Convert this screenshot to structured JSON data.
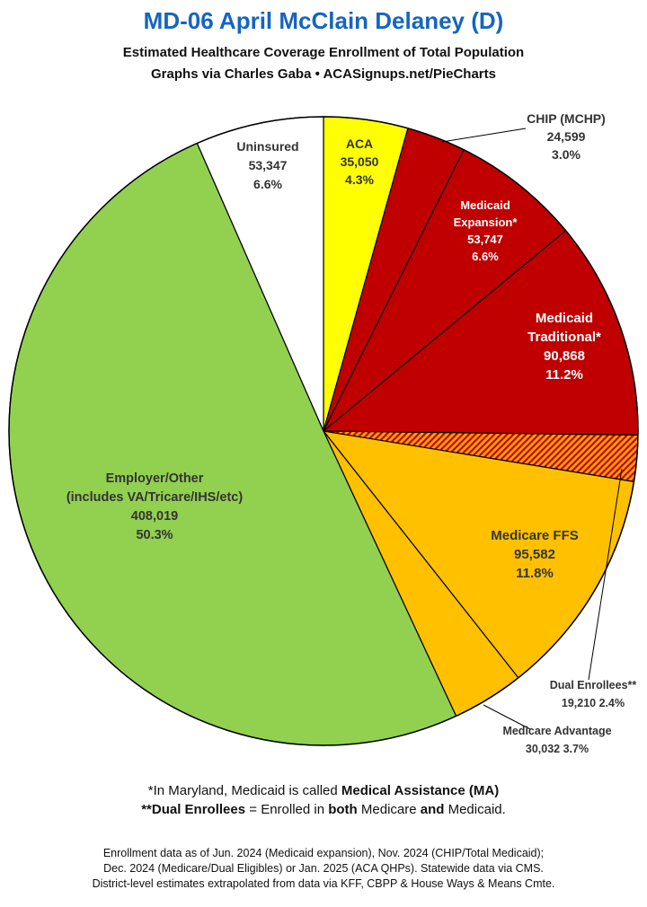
{
  "header": {
    "title": "MD-06 April McClain Delaney (D)",
    "subtitle1": "Estimated Healthcare Coverage Enrollment of Total Population",
    "subtitle2": "Graphs via Charles Gaba  •  ACASignups.net/PieCharts"
  },
  "chart_data": {
    "type": "pie",
    "title": "MD-06 April McClain Delaney (D)",
    "slices": [
      {
        "name": "ACA",
        "lines": [
          "ACA"
        ],
        "value": 35050,
        "value_text": "35,050",
        "percent": "4.3%",
        "color": "#ffff00",
        "label_color": "#333333"
      },
      {
        "name": "CHIP (MCHP)",
        "lines": [
          "CHIP (MCHP)"
        ],
        "value": 24599,
        "value_text": "24,599",
        "percent": "3.0%",
        "color": "#c00000",
        "label_color": "#333333"
      },
      {
        "name": "Medicaid Expansion*",
        "lines": [
          "Medicaid",
          "Expansion*"
        ],
        "value": 53747,
        "value_text": "53,747",
        "percent": "6.6%",
        "color": "#c00000",
        "label_color": "#ffffff"
      },
      {
        "name": "Medicaid Traditional*",
        "lines": [
          "Medicaid",
          "Traditional*"
        ],
        "value": 90868,
        "value_text": "90,868",
        "percent": "11.2%",
        "color": "#c00000",
        "label_color": "#ffffff"
      },
      {
        "name": "Dual Enrollees**",
        "lines": [
          "Dual Enrollees**"
        ],
        "value": 19210,
        "value_text": "19,210",
        "percent": "2.4%",
        "color": "#ffa500",
        "hatch": true,
        "label_color": "#333333"
      },
      {
        "name": "Medicare FFS",
        "lines": [
          "Medicare FFS"
        ],
        "value": 95582,
        "value_text": "95,582",
        "percent": "11.8%",
        "color": "#ffc000",
        "label_color": "#333333"
      },
      {
        "name": "Medicare Advantage",
        "lines": [
          "Medicare Advantage"
        ],
        "value": 30032,
        "value_text": "30,032",
        "percent": "3.7%",
        "color": "#ffc000",
        "label_color": "#333333"
      },
      {
        "name": "Employer/Other (includes VA/Tricare/IHS/etc)",
        "lines": [
          "Employer/Other",
          "(includes VA/Tricare/IHS/etc)"
        ],
        "value": 408019,
        "value_text": "408,019",
        "percent": "50.3%",
        "color": "#92d050",
        "label_color": "#333333"
      },
      {
        "name": "Uninsured",
        "lines": [
          "Uninsured"
        ],
        "value": 53347,
        "value_text": "53,347",
        "percent": "6.6%",
        "color": "#ffffff",
        "label_color": "#333333"
      }
    ]
  },
  "notes": {
    "line1_pre": "*In Maryland, Medicaid is called ",
    "line1_bold": "Medical Assistance (MA)",
    "line2_bold1": "**Dual Enrollees",
    "line2_mid": " = Enrolled in ",
    "line2_bold2": "both",
    "line2_mid2": " Medicare ",
    "line2_bold3": "and",
    "line2_end": " Medicaid."
  },
  "footer": {
    "line1": "Enrollment data as of Jun. 2024 (Medicaid expansion), Nov. 2024 (CHIP/Total Medicaid);",
    "line2": "Dec. 2024 (Medicare/Dual Eligibles) or Jan. 2025 (ACA QHPs). Statewide data via CMS.",
    "line3": "District-level estimates extrapolated from data via KFF, CBPP & House Ways & Means Cmte."
  }
}
